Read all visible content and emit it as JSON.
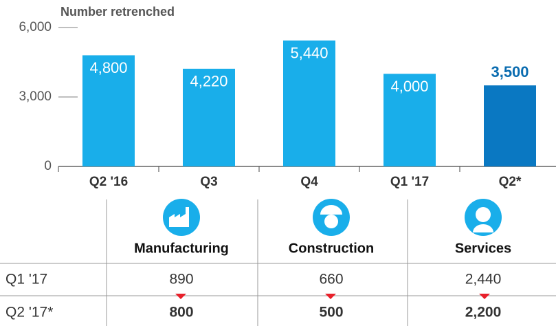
{
  "chart_data": {
    "type": "bar",
    "y_label": "Number retrenched",
    "categories": [
      "Q2 '16",
      "Q3",
      "Q4",
      "Q1 '17",
      "Q2*"
    ],
    "values": [
      4800,
      4220,
      5440,
      4000,
      3500
    ],
    "value_labels": [
      "4,800",
      "4,220",
      "5,440",
      "4,000",
      "3,500"
    ],
    "colors": [
      "#19aeea",
      "#19aeea",
      "#19aeea",
      "#19aeea",
      "#0a78c2"
    ],
    "ylim": [
      0,
      6000
    ],
    "yticks": [
      {
        "value": 0,
        "label": "0"
      },
      {
        "value": 3000,
        "label": "3,000"
      },
      {
        "value": 6000,
        "label": "6,000"
      }
    ]
  },
  "table": {
    "columns": [
      "Manufacturing",
      "Construction",
      "Services"
    ],
    "rows": [
      [
        "Q1 '17",
        "890",
        "660",
        "2,440"
      ],
      [
        "Q2 '17*",
        "800",
        "500",
        "2,200"
      ]
    ]
  }
}
